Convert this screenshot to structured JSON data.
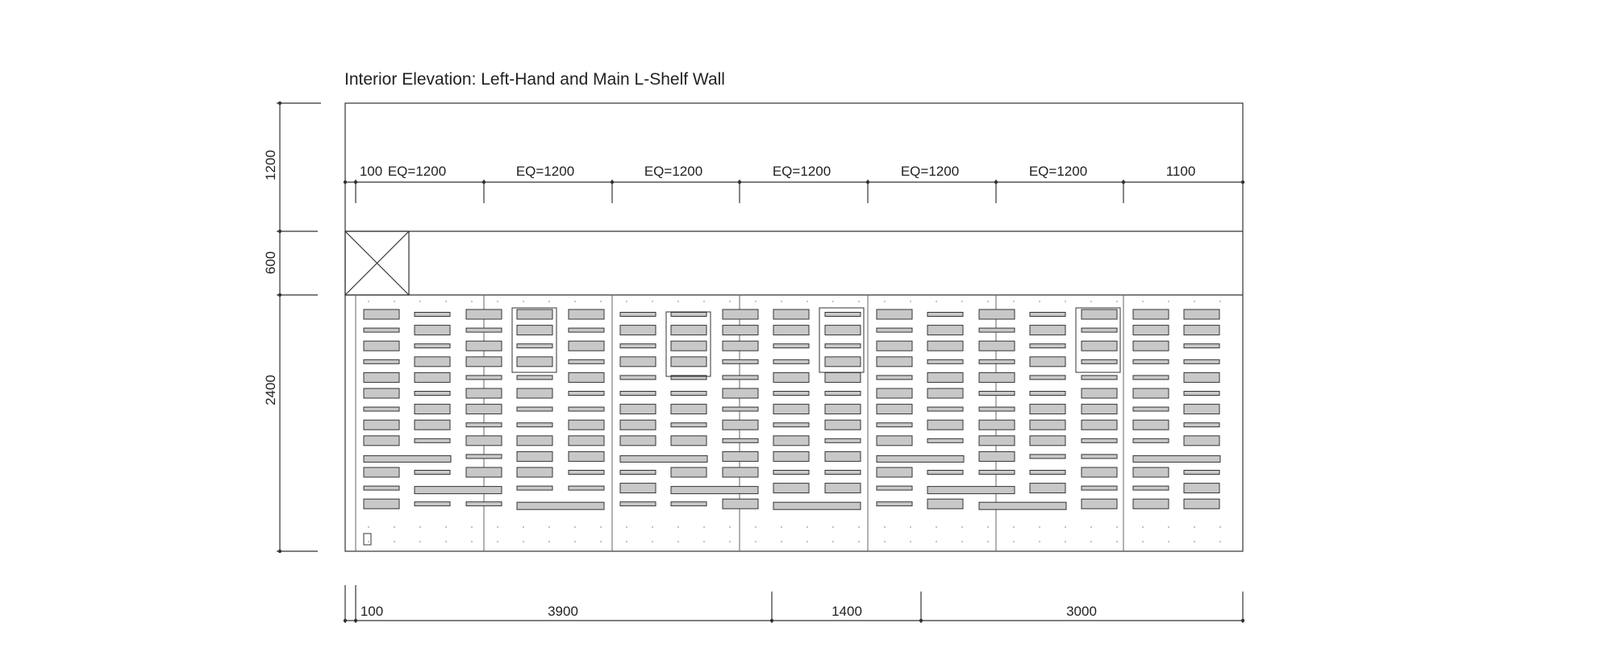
{
  "drawing": {
    "title": "Interior Elevation: Left-Hand and Main L-Shelf Wall",
    "colors": {
      "line": "#333333",
      "light_line": "#888888",
      "shelf_fill": "#c8c8c8",
      "background": "#ffffff"
    },
    "vertical_dims": [
      {
        "label": "1200"
      },
      {
        "label": "600"
      },
      {
        "label": "2400"
      }
    ],
    "top_dims": [
      {
        "label": "100"
      },
      {
        "label": "EQ=1200"
      },
      {
        "label": "EQ=1200"
      },
      {
        "label": "EQ=1200"
      },
      {
        "label": "EQ=1200"
      },
      {
        "label": "EQ=1200"
      },
      {
        "label": "EQ=1200"
      },
      {
        "label": "1100"
      }
    ],
    "bottom_dims": [
      {
        "label": "100"
      },
      {
        "label": "3900"
      },
      {
        "label": "1400"
      },
      {
        "label": "3000"
      }
    ]
  }
}
